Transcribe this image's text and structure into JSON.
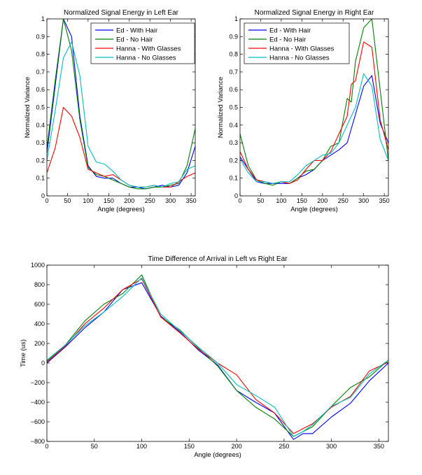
{
  "chart_data": [
    {
      "type": "line",
      "title": "Normalized Signal Energy in Left Ear",
      "xlabel": "Angle (degrees)",
      "ylabel": "Normalized Variance",
      "xlim": [
        0,
        360
      ],
      "ylim": [
        0,
        1
      ],
      "xticks": [
        "0",
        "50",
        "100",
        "150",
        "200",
        "250",
        "300",
        "350"
      ],
      "yticks": [
        "0",
        "0.1",
        "0.2",
        "0.3",
        "0.4",
        "0.5",
        "0.6",
        "0.7",
        "0.8",
        "0.9",
        "1"
      ],
      "legend": "top-right",
      "x": [
        0,
        20,
        40,
        60,
        80,
        100,
        120,
        140,
        160,
        180,
        200,
        220,
        240,
        260,
        280,
        300,
        320,
        340,
        360
      ],
      "series": [
        {
          "name": "Ed - With Hair",
          "color": "#0000ff",
          "values": [
            0.24,
            0.62,
            1.0,
            0.9,
            0.45,
            0.17,
            0.11,
            0.1,
            0.1,
            0.07,
            0.05,
            0.05,
            0.04,
            0.05,
            0.06,
            0.05,
            0.06,
            0.13,
            0.28
          ]
        },
        {
          "name": "Ed - No Hair",
          "color": "#008000",
          "values": [
            0.27,
            0.65,
            1.0,
            0.82,
            0.43,
            0.16,
            0.12,
            0.11,
            0.09,
            0.07,
            0.05,
            0.04,
            0.04,
            0.05,
            0.05,
            0.06,
            0.07,
            0.17,
            0.38
          ]
        },
        {
          "name": "Hanna - With Glasses",
          "color": "#ff0000",
          "values": [
            0.13,
            0.27,
            0.5,
            0.45,
            0.33,
            0.15,
            0.13,
            0.11,
            0.12,
            0.09,
            0.06,
            0.05,
            0.05,
            0.06,
            0.05,
            0.05,
            0.08,
            0.11,
            0.13
          ]
        },
        {
          "name": "Hanna - No Glasses",
          "color": "#00bfbf",
          "values": [
            0.2,
            0.48,
            0.78,
            0.87,
            0.68,
            0.28,
            0.19,
            0.18,
            0.14,
            0.09,
            0.06,
            0.05,
            0.05,
            0.06,
            0.05,
            0.07,
            0.08,
            0.15,
            0.17
          ]
        }
      ]
    },
    {
      "type": "line",
      "title": "Normalized Signal Energy in Right Ear",
      "xlabel": "Angle (degrees)",
      "ylabel": "Normalized Variance",
      "xlim": [
        0,
        360
      ],
      "ylim": [
        0,
        1
      ],
      "xticks": [
        "0",
        "50",
        "100",
        "150",
        "200",
        "250",
        "300",
        "350"
      ],
      "yticks": [
        "0",
        "0.1",
        "0.2",
        "0.3",
        "0.4",
        "0.5",
        "0.6",
        "0.7",
        "0.8",
        "0.9",
        "1"
      ],
      "legend": "top-left",
      "x": [
        0,
        20,
        40,
        60,
        80,
        100,
        120,
        140,
        160,
        180,
        200,
        220,
        240,
        260,
        270,
        280,
        300,
        320,
        340,
        360
      ],
      "series": [
        {
          "name": "Ed - With Hair",
          "color": "#0000ff",
          "values": [
            0.22,
            0.15,
            0.08,
            0.07,
            0.07,
            0.07,
            0.07,
            0.1,
            0.12,
            0.15,
            0.2,
            0.23,
            0.26,
            0.3,
            0.38,
            0.46,
            0.62,
            0.68,
            0.41,
            0.3
          ]
        },
        {
          "name": "Ed - No Hair",
          "color": "#008000",
          "values": [
            0.35,
            0.17,
            0.09,
            0.07,
            0.06,
            0.08,
            0.07,
            0.1,
            0.14,
            0.15,
            0.2,
            0.28,
            0.3,
            0.55,
            0.53,
            0.76,
            0.95,
            1.0,
            0.6,
            0.2
          ]
        },
        {
          "name": "Hanna - With Glasses",
          "color": "#ff0000",
          "values": [
            0.25,
            0.15,
            0.09,
            0.08,
            0.07,
            0.08,
            0.07,
            0.09,
            0.15,
            0.2,
            0.2,
            0.25,
            0.35,
            0.45,
            0.63,
            0.65,
            0.87,
            0.84,
            0.43,
            0.26
          ]
        },
        {
          "name": "Hanna - No Glasses",
          "color": "#00bfbf",
          "values": [
            0.21,
            0.13,
            0.08,
            0.08,
            0.07,
            0.08,
            0.08,
            0.12,
            0.17,
            0.2,
            0.23,
            0.24,
            0.3,
            0.4,
            0.45,
            0.5,
            0.69,
            0.62,
            0.32,
            0.2
          ]
        }
      ]
    },
    {
      "type": "line",
      "title": "Time Difference of Arrival in Left vs Right Ear",
      "xlabel": "Angle (degrees)",
      "ylabel": "Time (us)",
      "xlim": [
        0,
        360
      ],
      "ylim": [
        -800,
        1000
      ],
      "xticks": [
        "0",
        "50",
        "100",
        "150",
        "200",
        "250",
        "300",
        "350"
      ],
      "yticks": [
        "−800",
        "−600",
        "−400",
        "−200",
        "0",
        "200",
        "400",
        "600",
        "800",
        "1000"
      ],
      "x": [
        0,
        20,
        40,
        60,
        80,
        100,
        120,
        140,
        160,
        180,
        200,
        220,
        240,
        260,
        270,
        280,
        300,
        320,
        340,
        360
      ],
      "series": [
        {
          "name": "",
          "color": "#0000ff",
          "values": [
            0,
            170,
            360,
            520,
            750,
            820,
            480,
            320,
            130,
            -20,
            -280,
            -400,
            -510,
            -780,
            -720,
            -720,
            -550,
            -410,
            -180,
            0
          ]
        },
        {
          "name": "",
          "color": "#008000",
          "values": [
            20,
            190,
            430,
            600,
            710,
            900,
            470,
            340,
            150,
            -30,
            -280,
            -450,
            -570,
            -750,
            -700,
            -650,
            -440,
            -250,
            -140,
            30
          ]
        },
        {
          "name": "",
          "color": "#ff0000",
          "values": [
            10,
            180,
            400,
            560,
            750,
            860,
            470,
            310,
            140,
            0,
            -120,
            -370,
            -510,
            -720,
            -670,
            -620,
            -450,
            -340,
            -80,
            10
          ]
        },
        {
          "name": "",
          "color": "#00bfbf",
          "values": [
            30,
            190,
            380,
            520,
            680,
            870,
            500,
            330,
            160,
            0,
            -220,
            -330,
            -450,
            -750,
            -700,
            -630,
            -440,
            -350,
            -110,
            30
          ]
        }
      ]
    }
  ]
}
